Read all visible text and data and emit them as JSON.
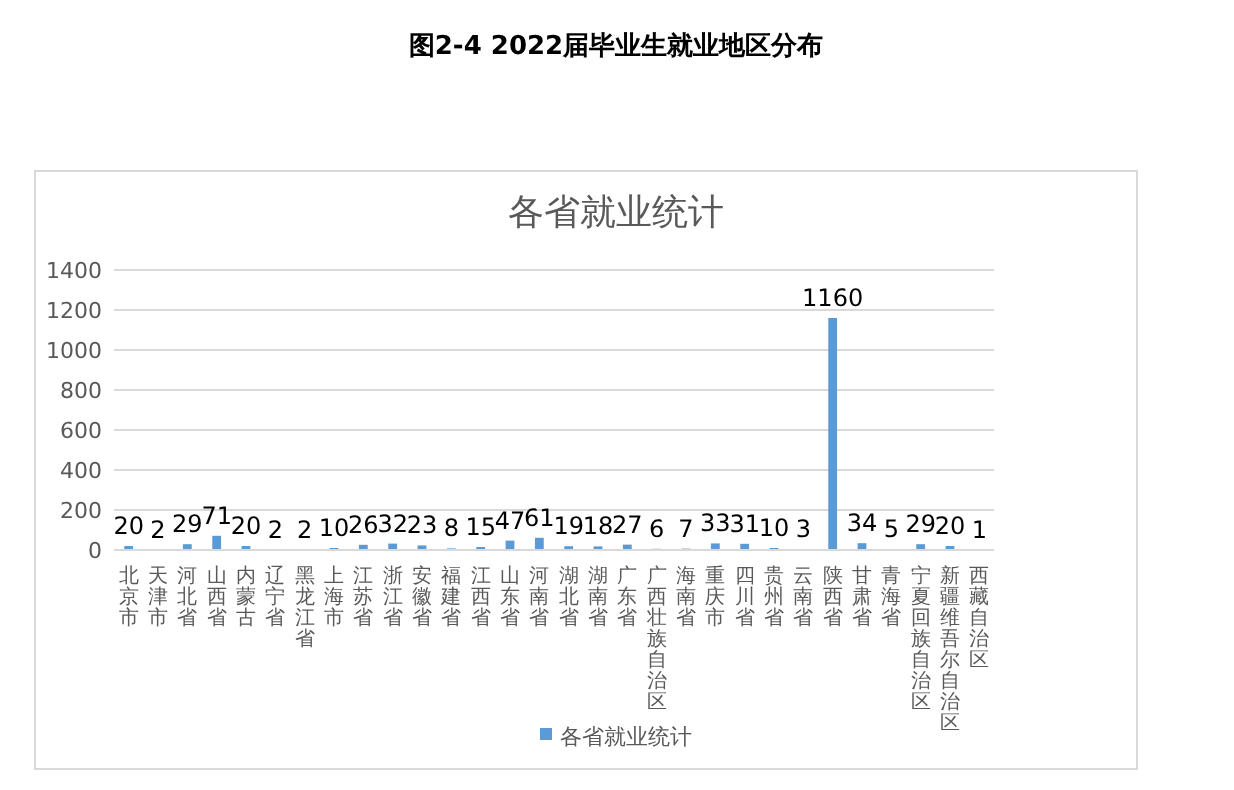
{
  "chart_data": {
    "type": "bar",
    "title": "图2-4 2022届毕业生就业地区分布",
    "subtitle": "各省就业统计",
    "categories": [
      "北京市",
      "天津市",
      "河北省",
      "山西省",
      "内蒙古",
      "辽宁省",
      "黑龙江省",
      "上海市",
      "江苏省",
      "浙江省",
      "安徽省",
      "福建省",
      "江西省",
      "山东省",
      "河南省",
      "湖北省",
      "湖南省",
      "广东省",
      "广西壮族自治区",
      "海南省",
      "重庆市",
      "四川省",
      "贵州省",
      "云南省",
      "陕西省",
      "甘肃省",
      "青海省",
      "宁夏回族自治区",
      "新疆维吾尔自治区",
      "西藏自治区"
    ],
    "series": [
      {
        "name": "各省就业统计",
        "color": "#5b9bd5",
        "values": [
          20,
          2,
          29,
          71,
          20,
          2,
          2,
          10,
          26,
          32,
          23,
          8,
          15,
          47,
          61,
          19,
          18,
          27,
          6,
          7,
          33,
          31,
          10,
          3,
          1160,
          34,
          5,
          29,
          20,
          1
        ]
      }
    ],
    "ylim": [
      0,
      1400
    ],
    "yticks": [
      0,
      200,
      400,
      600,
      800,
      1000,
      1200,
      1400
    ],
    "grid": "y",
    "legend": "bottom",
    "data_labels": true
  }
}
